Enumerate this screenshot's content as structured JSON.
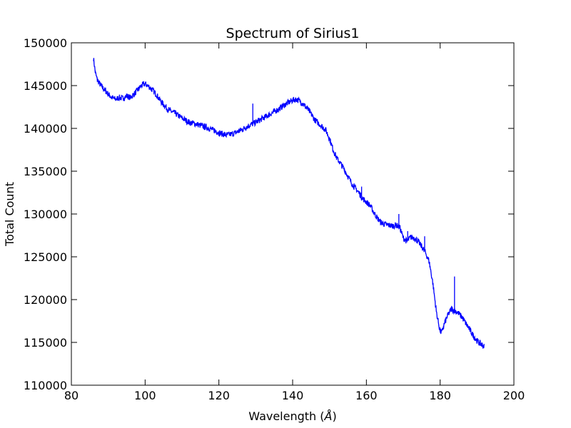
{
  "chart_data": {
    "type": "line",
    "title": "Spectrum of Sirius1",
    "xlabel_main": "Wavelength (",
    "xlabel_unit": "Å",
    "xlabel_close": ")",
    "ylabel": "Total Count",
    "xlim": [
      80,
      200
    ],
    "ylim": [
      110000,
      150000
    ],
    "x_ticks": [
      80,
      100,
      120,
      140,
      160,
      180,
      200
    ],
    "y_ticks": [
      110000,
      115000,
      120000,
      125000,
      130000,
      135000,
      140000,
      145000,
      150000
    ],
    "x_tick_labels": [
      "80",
      "100",
      "120",
      "140",
      "160",
      "180",
      "200"
    ],
    "y_tick_labels": [
      "110000",
      "115000",
      "120000",
      "125000",
      "130000",
      "135000",
      "140000",
      "145000",
      "150000"
    ],
    "grid": false,
    "series_color": "#0000ff",
    "series": [
      {
        "x": [
          86,
          86.5,
          87,
          88,
          89,
          90,
          91,
          92,
          93,
          94,
          95,
          96,
          97,
          98,
          99,
          100,
          101,
          102,
          103,
          104,
          105,
          106,
          107,
          108,
          110,
          112,
          114,
          116,
          118,
          120,
          122,
          124,
          126,
          128,
          130,
          132,
          134,
          136,
          138,
          140,
          141,
          142,
          143,
          144,
          145,
          146,
          147,
          148,
          149,
          150,
          151,
          152,
          153,
          154,
          155,
          156,
          157,
          158,
          159,
          160,
          161,
          162,
          163,
          164,
          165,
          166,
          167,
          168,
          169,
          170,
          171,
          172,
          173,
          174,
          175,
          176,
          177,
          178,
          179,
          180,
          180.5,
          181,
          182,
          183,
          184,
          185,
          186,
          187,
          188,
          189,
          190,
          191,
          192
        ],
        "y": [
          148200,
          146500,
          145700,
          145000,
          144500,
          144000,
          143600,
          143400,
          143600,
          143500,
          143800,
          143600,
          144000,
          144500,
          145000,
          145200,
          144900,
          144500,
          144000,
          143300,
          142800,
          142300,
          142000,
          141800,
          141200,
          140700,
          140500,
          140200,
          139900,
          139500,
          139200,
          139400,
          139800,
          140300,
          140700,
          141200,
          141700,
          142200,
          142800,
          143300,
          143400,
          143200,
          142800,
          142300,
          141700,
          141000,
          140600,
          140200,
          139800,
          138800,
          137500,
          136500,
          135900,
          135200,
          134400,
          133600,
          133000,
          132500,
          131800,
          131400,
          131000,
          130200,
          129500,
          129000,
          128800,
          128700,
          128600,
          128700,
          128500,
          127200,
          126800,
          127300,
          127200,
          126800,
          126200,
          125500,
          124500,
          122000,
          118500,
          116300,
          116200,
          117000,
          118100,
          118900,
          118700,
          118400,
          117900,
          117200,
          116500,
          115800,
          115200,
          114800,
          114500
        ],
        "spikes": [
          [
            129.2,
            142900
          ],
          [
            158.7,
            133200
          ],
          [
            168.8,
            130000
          ],
          [
            171.2,
            128000
          ],
          [
            175.8,
            127400
          ],
          [
            183.9,
            122700
          ]
        ]
      }
    ]
  }
}
